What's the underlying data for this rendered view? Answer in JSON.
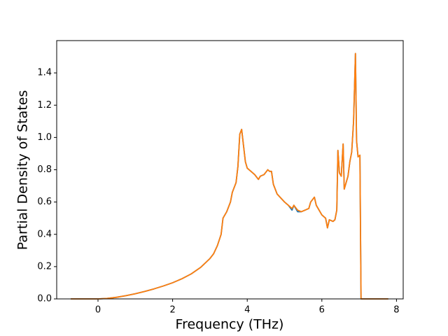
{
  "chart_data": {
    "type": "line",
    "x_label": "Frequency (THz)",
    "y_label": "Partial Density of States",
    "x": [
      -0.73,
      0,
      0.25,
      0.5,
      0.75,
      1.0,
      1.25,
      1.5,
      1.75,
      2.0,
      2.25,
      2.5,
      2.75,
      3.0,
      3.1,
      3.2,
      3.3,
      3.35,
      3.45,
      3.55,
      3.6,
      3.7,
      3.75,
      3.8,
      3.85,
      3.9,
      3.95,
      4.0,
      4.1,
      4.2,
      4.3,
      4.35,
      4.45,
      4.55,
      4.6,
      4.65,
      4.7,
      4.8,
      5.0,
      5.1,
      5.2,
      5.25,
      5.35,
      5.45,
      5.55,
      5.65,
      5.7,
      5.8,
      5.85,
      6.0,
      6.1,
      6.15,
      6.2,
      6.3,
      6.35,
      6.4,
      6.43,
      6.47,
      6.52,
      6.57,
      6.6,
      6.7,
      6.75,
      6.8,
      6.85,
      6.9,
      6.93,
      6.97,
      7.02,
      7.05,
      7.78
    ],
    "series": [
      {
        "color": "#1f77b4",
        "values": [
          0,
          0,
          0.003,
          0.01,
          0.02,
          0.032,
          0.046,
          0.062,
          0.08,
          0.1,
          0.125,
          0.155,
          0.195,
          0.25,
          0.28,
          0.33,
          0.4,
          0.5,
          0.54,
          0.6,
          0.66,
          0.72,
          0.82,
          1.02,
          1.05,
          0.95,
          0.85,
          0.81,
          0.79,
          0.77,
          0.74,
          0.76,
          0.77,
          0.8,
          0.79,
          0.79,
          0.71,
          0.65,
          0.6,
          0.58,
          0.55,
          0.58,
          0.54,
          0.54,
          0.55,
          0.56,
          0.6,
          0.63,
          0.58,
          0.52,
          0.5,
          0.44,
          0.49,
          0.48,
          0.49,
          0.55,
          0.92,
          0.78,
          0.76,
          0.96,
          0.68,
          0.76,
          0.85,
          0.91,
          1.1,
          1.52,
          0.98,
          0.88,
          0.89,
          0,
          0
        ]
      },
      {
        "color": "#ff7f0e",
        "values": [
          0,
          0,
          0.003,
          0.01,
          0.02,
          0.032,
          0.046,
          0.062,
          0.08,
          0.1,
          0.125,
          0.155,
          0.195,
          0.25,
          0.28,
          0.33,
          0.4,
          0.5,
          0.54,
          0.6,
          0.66,
          0.72,
          0.82,
          1.02,
          1.05,
          0.95,
          0.85,
          0.81,
          0.79,
          0.77,
          0.74,
          0.76,
          0.77,
          0.8,
          0.79,
          0.79,
          0.71,
          0.65,
          0.6,
          0.58,
          0.56,
          0.58,
          0.55,
          0.54,
          0.55,
          0.56,
          0.6,
          0.63,
          0.58,
          0.52,
          0.5,
          0.44,
          0.49,
          0.48,
          0.49,
          0.55,
          0.92,
          0.78,
          0.76,
          0.96,
          0.68,
          0.76,
          0.85,
          0.91,
          1.1,
          1.52,
          0.98,
          0.88,
          0.89,
          0,
          0
        ]
      }
    ],
    "xlim": [
      -1.107,
      8.18
    ],
    "ylim": [
      0,
      1.6
    ],
    "xticks": [
      0,
      2,
      4,
      6,
      8
    ],
    "yticks": [
      {
        "value": 0,
        "label": "0.0"
      },
      {
        "value": 0.2,
        "label": "0.2"
      },
      {
        "value": 0.4,
        "label": "0.4"
      },
      {
        "value": 0.6,
        "label": "0.6"
      },
      {
        "value": 0.8,
        "label": "0.8"
      },
      {
        "value": 1.0,
        "label": "1.0"
      },
      {
        "value": 1.2,
        "label": "1.2"
      },
      {
        "value": 1.4,
        "label": "1.4"
      }
    ]
  }
}
